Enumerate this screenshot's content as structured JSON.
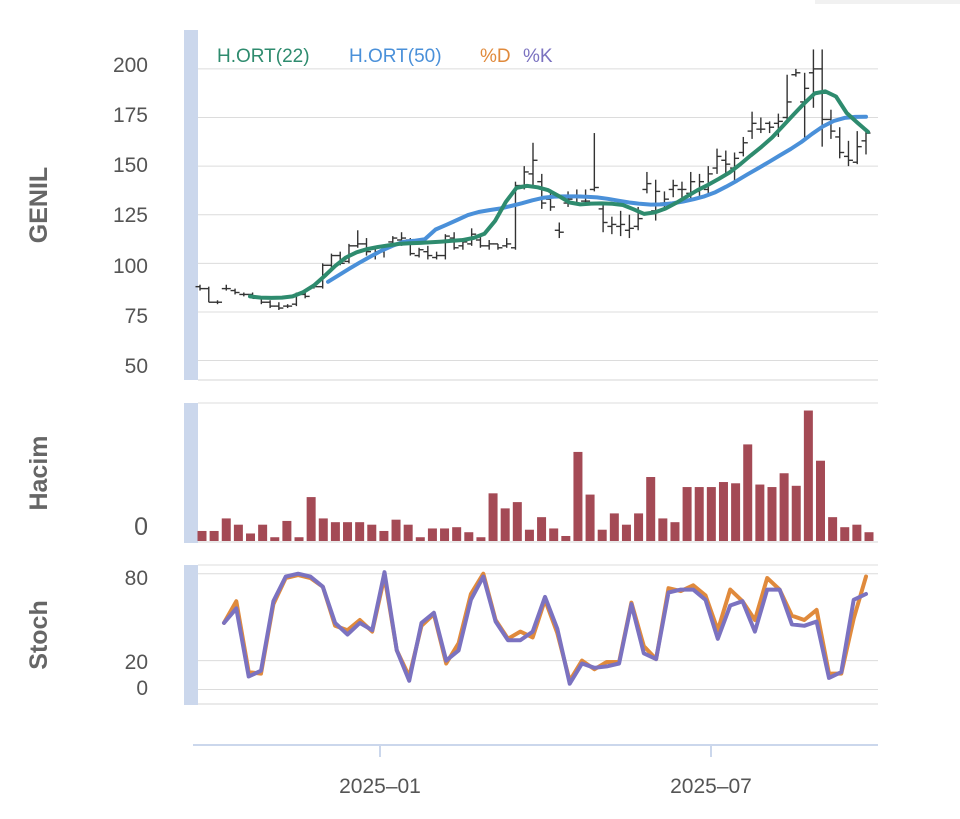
{
  "chart_data": [
    {
      "type": "ohlc",
      "ylabel": "GENIL",
      "ylim": [
        40,
        220
      ],
      "yticks": [
        "200",
        "175",
        "150",
        "125",
        "100",
        "75",
        "50"
      ],
      "ytick_values": [
        200,
        175,
        150,
        125,
        100,
        75,
        50
      ],
      "grid": true,
      "legend": [
        {
          "label": "H.ORT(22)",
          "color": "#2e8b6e"
        },
        {
          "label": "H.ORT(50)",
          "color": "#4a90d9"
        },
        {
          "label": "%D",
          "color": "#e08a3c"
        },
        {
          "label": "%K",
          "color": "#7b72c0"
        }
      ],
      "colors": {
        "bars": "#333333",
        "ma22": "#2e8b6e",
        "ma50": "#4a90d9"
      },
      "ohlc": [
        [
          88,
          89,
          86,
          87
        ],
        [
          87,
          88,
          80,
          80
        ],
        [
          80,
          81,
          79,
          80
        ],
        [
          87,
          89,
          86,
          87
        ],
        [
          86,
          87,
          84,
          85
        ],
        [
          84,
          85,
          83,
          84
        ],
        [
          84,
          85,
          82,
          82
        ],
        [
          82,
          83,
          79,
          80
        ],
        [
          80,
          81,
          77,
          78
        ],
        [
          78,
          80,
          76,
          77
        ],
        [
          78,
          79,
          77,
          78
        ],
        [
          79,
          85,
          78,
          84
        ],
        [
          84,
          86,
          82,
          83
        ],
        [
          88,
          89,
          87,
          88
        ],
        [
          88,
          100,
          87,
          99
        ],
        [
          99,
          105,
          96,
          104
        ],
        [
          104,
          106,
          99,
          100
        ],
        [
          101,
          110,
          100,
          109
        ],
        [
          109,
          117,
          108,
          110
        ],
        [
          110,
          113,
          104,
          106
        ],
        [
          104,
          108,
          102,
          106
        ],
        [
          106,
          109,
          103,
          108
        ],
        [
          111,
          114,
          109,
          113
        ],
        [
          112,
          116,
          109,
          113
        ],
        [
          112,
          113,
          104,
          105
        ],
        [
          104,
          108,
          103,
          107
        ],
        [
          106,
          109,
          102,
          104
        ],
        [
          103,
          106,
          102,
          104
        ],
        [
          104,
          115,
          102,
          114
        ],
        [
          113,
          116,
          107,
          108
        ],
        [
          109,
          113,
          107,
          111
        ],
        [
          110,
          118,
          109,
          115
        ],
        [
          112,
          114,
          108,
          109
        ],
        [
          109,
          112,
          107,
          110
        ],
        [
          110,
          110,
          107,
          108
        ],
        [
          109,
          113,
          108,
          110
        ],
        [
          108,
          142,
          107,
          140
        ],
        [
          140,
          150,
          138,
          147
        ],
        [
          146,
          162,
          139,
          153
        ],
        [
          142,
          146,
          128,
          131
        ],
        [
          133,
          138,
          127,
          129
        ],
        [
          117,
          121,
          113,
          116
        ],
        [
          131,
          137,
          129,
          133
        ],
        [
          134,
          138,
          130,
          135
        ],
        [
          132,
          138,
          130,
          132
        ],
        [
          138,
          167,
          137,
          139
        ],
        [
          128,
          131,
          116,
          121
        ],
        [
          119,
          124,
          115,
          120
        ],
        [
          119,
          127,
          114,
          120
        ],
        [
          117,
          125,
          113,
          118
        ],
        [
          119,
          129,
          117,
          123
        ],
        [
          138,
          147,
          136,
          141
        ],
        [
          127,
          143,
          122,
          137
        ],
        [
          131,
          137,
          127,
          133
        ],
        [
          138,
          143,
          134,
          140
        ],
        [
          138,
          142,
          133,
          138
        ],
        [
          136,
          147,
          132,
          142
        ],
        [
          137,
          146,
          133,
          142
        ],
        [
          138,
          150,
          136,
          146
        ],
        [
          149,
          159,
          146,
          155
        ],
        [
          153,
          158,
          146,
          151
        ],
        [
          149,
          157,
          142,
          154
        ],
        [
          157,
          165,
          155,
          162
        ],
        [
          168,
          178,
          164,
          172
        ],
        [
          169,
          175,
          167,
          169
        ],
        [
          172,
          173,
          167,
          170
        ],
        [
          172,
          177,
          165,
          173
        ],
        [
          175,
          197,
          173,
          183
        ],
        [
          197,
          200,
          196,
          198
        ],
        [
          183,
          198,
          164,
          190
        ],
        [
          198,
          210,
          180,
          200
        ],
        [
          200,
          210,
          160,
          174
        ],
        [
          174,
          179,
          164,
          168
        ],
        [
          165,
          170,
          154,
          157
        ],
        [
          155,
          163,
          150,
          153
        ],
        [
          152,
          168,
          151,
          160
        ],
        [
          163,
          168,
          156,
          167
        ]
      ],
      "ma22": [
        83,
        82.4,
        82.2,
        82.4,
        83,
        85.2,
        88.6,
        93.5,
        98.7,
        103,
        105.7,
        107.3,
        108.4,
        109.2,
        110,
        110.3,
        110.5,
        110.8,
        111.2,
        111.6,
        112,
        113.1,
        115.2,
        121.8,
        131.5,
        138.8,
        139.8,
        139.1,
        137.6,
        134.6,
        131.3,
        130.3,
        130.7,
        130.8,
        130.6,
        130,
        127.8,
        125.4,
        126.2,
        128.2,
        131.1,
        134.4,
        137.6,
        140.4,
        143.4,
        146.7,
        150.9,
        155.5,
        159.9,
        164.7,
        170.6,
        176.4,
        182.2,
        187.4,
        188.4,
        185.8,
        177.3,
        172.4,
        167.6
      ],
      "ma50": [
        90.5,
        93.9,
        97.3,
        100.6,
        103.6,
        106.6,
        109,
        111,
        111.6,
        112.4,
        117.4,
        119.8,
        122.3,
        124.8,
        126.4,
        127.4,
        128.2,
        129.5,
        130.9,
        132.4,
        133.7,
        134.3,
        134.4,
        134.4,
        134.2,
        133.9,
        133.2,
        132.2,
        131.3,
        130.6,
        130.2,
        130.3,
        130.8,
        131.8,
        133,
        134.5,
        136.6,
        139.4,
        142.5,
        145.8,
        149,
        152.2,
        155.5,
        158.8,
        162.4,
        166.6,
        170.4,
        173.2,
        174.8,
        175.3,
        175.4
      ]
    },
    {
      "type": "bar",
      "ylabel": "Hacim",
      "yticks": [
        "0"
      ],
      "ylim": [
        0,
        110
      ],
      "colors": {
        "bars": "#a44a55"
      },
      "values": [
        8,
        8,
        18,
        13,
        6,
        13,
        3,
        16,
        3,
        35,
        18,
        15,
        15,
        15,
        13,
        8,
        17,
        13,
        3,
        10,
        10,
        11,
        7,
        3,
        38,
        26,
        31,
        9,
        19,
        10,
        4,
        71,
        37,
        9,
        22,
        13,
        22,
        51,
        18,
        15,
        43,
        43,
        43,
        47,
        46,
        77,
        45,
        43,
        54,
        44,
        104,
        64,
        19,
        11,
        13,
        7
      ]
    },
    {
      "type": "line",
      "ylabel": "Stoch",
      "yticks": [
        "80",
        "20",
        "0"
      ],
      "ytick_values": [
        80,
        20,
        0
      ],
      "ylim": [
        -10,
        86
      ],
      "colors": {
        "d": "#e08a3c",
        "k": "#7b72c0"
      },
      "series": [
        {
          "name": "%D",
          "values": [
            46,
            61,
            12,
            11,
            59,
            77,
            79,
            77,
            71,
            44,
            41,
            48,
            40,
            78,
            27,
            9,
            44,
            52,
            18,
            32,
            66,
            80,
            48,
            35,
            40,
            36,
            62,
            39,
            6,
            20,
            14,
            19,
            19,
            60,
            30,
            21,
            70,
            68,
            72,
            65,
            41,
            69,
            61,
            48,
            77,
            69,
            51,
            48,
            55,
            11,
            11,
            49,
            78
          ]
        },
        {
          "name": "%K",
          "values": [
            46,
            56,
            9,
            13,
            61,
            78,
            80,
            78,
            71,
            46,
            38,
            46,
            41,
            81,
            27,
            6,
            46,
            53,
            20,
            27,
            62,
            78,
            47,
            34,
            34,
            40,
            64,
            42,
            4,
            18,
            15,
            16,
            18,
            59,
            25,
            21,
            67,
            69,
            69,
            62,
            35,
            58,
            61,
            40,
            69,
            69,
            45,
            44,
            47,
            8,
            12,
            62,
            66
          ]
        }
      ]
    },
    {
      "type": "axis",
      "xticks": [
        "2025–01",
        "2025–07"
      ]
    }
  ]
}
